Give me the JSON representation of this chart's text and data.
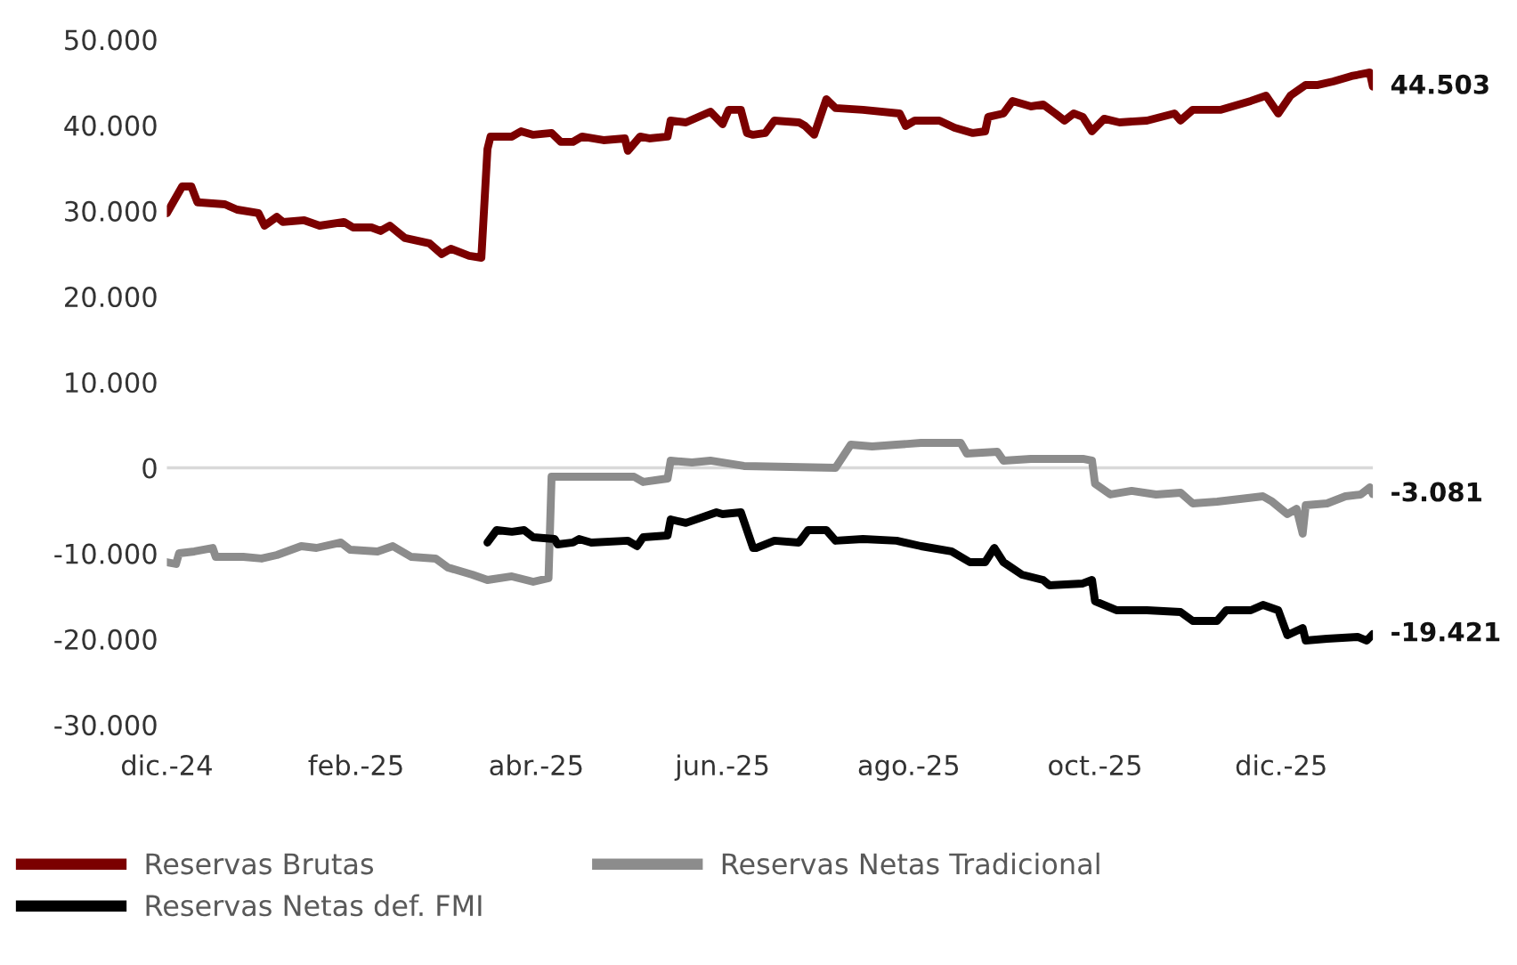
{
  "chart_data": {
    "type": "line",
    "xlim": [
      "2024-12-01",
      "2025-12-31"
    ],
    "xticks": [
      {
        "value": "2024-12-01",
        "label": "dic.-24"
      },
      {
        "value": "2025-02-01",
        "label": "feb.-25"
      },
      {
        "value": "2025-04-01",
        "label": "abr.-25"
      },
      {
        "value": "2025-06-01",
        "label": "jun.-25"
      },
      {
        "value": "2025-08-01",
        "label": "ago.-25"
      },
      {
        "value": "2025-10-01",
        "label": "oct.-25"
      },
      {
        "value": "2025-12-01",
        "label": "dic.-25"
      }
    ],
    "ylim": [
      -30000,
      50000
    ],
    "yticks": [
      {
        "value": 50000,
        "label": "50.000"
      },
      {
        "value": 40000,
        "label": "40.000"
      },
      {
        "value": 30000,
        "label": "30.000"
      },
      {
        "value": 20000,
        "label": "20.000"
      },
      {
        "value": 10000,
        "label": "10.000"
      },
      0,
      {
        "value": -10000,
        "label": "-10.000"
      },
      {
        "value": -20000,
        "label": "-20.000"
      },
      {
        "value": -30000,
        "label": "-30.000"
      }
    ],
    "grid": false,
    "legend": "bottom",
    "marker": "none",
    "line_style": "solid",
    "ref_lines": [
      {
        "axis": "y",
        "value": 0,
        "color": "#d9d9d9"
      }
    ],
    "annotations": [
      {
        "text": "44.503",
        "x": "2025-12-31",
        "y": 44503
      },
      {
        "text": "-3.081",
        "x": "2025-12-31",
        "y": -3081
      },
      {
        "text": "-19.421",
        "x": "2025-12-31",
        "y": -19421
      }
    ],
    "series": [
      {
        "name": "Reservas Brutas",
        "color": "#7b0000",
        "x": [
          "2024-12-01",
          "2024-12-06",
          "2024-12-09",
          "2024-12-11",
          "2024-12-20",
          "2024-12-24",
          "2024-12-31",
          "2025-01-02",
          "2025-01-06",
          "2025-01-08",
          "2025-01-15",
          "2025-01-20",
          "2025-01-28",
          "2025-01-31",
          "2025-02-06",
          "2025-02-09",
          "2025-02-12",
          "2025-02-17",
          "2025-02-25",
          "2025-03-01",
          "2025-03-04",
          "2025-03-10",
          "2025-03-14",
          "2025-03-16",
          "2025-03-17",
          "2025-03-24",
          "2025-03-27",
          "2025-03-31",
          "2025-04-06",
          "2025-04-09",
          "2025-04-13",
          "2025-04-16",
          "2025-04-23",
          "2025-04-30",
          "2025-05-01",
          "2025-05-05",
          "2025-05-08",
          "2025-05-14",
          "2025-05-15",
          "2025-05-20",
          "2025-05-28",
          "2025-06-01",
          "2025-06-03",
          "2025-06-07",
          "2025-06-09",
          "2025-06-11",
          "2025-06-15",
          "2025-06-18",
          "2025-06-26",
          "2025-06-28",
          "2025-07-01",
          "2025-07-05",
          "2025-07-08",
          "2025-07-17",
          "2025-07-29",
          "2025-07-31",
          "2025-08-03",
          "2025-08-11",
          "2025-08-16",
          "2025-08-22",
          "2025-08-26",
          "2025-08-27",
          "2025-09-01",
          "2025-09-04",
          "2025-09-10",
          "2025-09-14",
          "2025-09-18",
          "2025-09-21",
          "2025-09-24",
          "2025-09-27",
          "2025-09-30",
          "2025-10-04",
          "2025-10-09",
          "2025-10-18",
          "2025-10-27",
          "2025-10-29",
          "2025-11-02",
          "2025-11-11",
          "2025-11-21",
          "2025-11-26",
          "2025-11-30",
          "2025-12-04",
          "2025-12-09",
          "2025-12-13",
          "2025-12-18",
          "2025-12-24",
          "2025-12-30",
          "2025-12-31"
        ],
        "values": [
          29730,
          32850,
          32850,
          31000,
          30770,
          30140,
          29730,
          28270,
          29300,
          28700,
          28900,
          28270,
          28700,
          28060,
          28060,
          27650,
          28270,
          26820,
          26200,
          24950,
          25570,
          24740,
          24530,
          37210,
          38670,
          38670,
          39290,
          38880,
          39090,
          38050,
          38050,
          38670,
          38250,
          38460,
          37010,
          38670,
          38460,
          38670,
          40540,
          40330,
          41580,
          40120,
          41790,
          41790,
          39090,
          38880,
          39090,
          40540,
          40330,
          39920,
          38880,
          43040,
          42000,
          41790,
          41370,
          39920,
          40540,
          40540,
          39710,
          39090,
          39290,
          40960,
          41370,
          42830,
          42200,
          42410,
          41370,
          40540,
          41370,
          40960,
          39290,
          40750,
          40330,
          40540,
          41370,
          40540,
          41790,
          41790,
          42830,
          43450,
          41370,
          43450,
          44700,
          44700,
          45110,
          45740,
          46150,
          44503
        ]
      },
      {
        "name": "Reservas Netas Tradicional",
        "color": "#8c8c8c",
        "x": [
          "2024-12-01",
          "2024-12-04",
          "2024-12-05",
          "2024-12-10",
          "2024-12-16",
          "2024-12-17",
          "2024-12-26",
          "2025-01-01",
          "2025-01-06",
          "2025-01-14",
          "2025-01-19",
          "2025-01-27",
          "2025-01-30",
          "2025-02-08",
          "2025-02-13",
          "2025-02-19",
          "2025-02-27",
          "2025-03-03",
          "2025-03-11",
          "2025-03-16",
          "2025-03-24",
          "2025-03-31",
          "2025-04-05",
          "2025-04-06",
          "2025-05-03",
          "2025-05-06",
          "2025-05-14",
          "2025-05-15",
          "2025-05-22",
          "2025-05-28",
          "2025-06-08",
          "2025-07-08",
          "2025-07-13",
          "2025-07-20",
          "2025-07-28",
          "2025-08-05",
          "2025-08-18",
          "2025-08-20",
          "2025-08-30",
          "2025-09-01",
          "2025-09-10",
          "2025-09-27",
          "2025-09-30",
          "2025-10-01",
          "2025-10-06",
          "2025-10-13",
          "2025-10-21",
          "2025-10-29",
          "2025-11-02",
          "2025-11-10",
          "2025-11-25",
          "2025-11-28",
          "2025-12-03",
          "2025-12-06",
          "2025-12-08",
          "2025-12-09",
          "2025-12-16",
          "2025-12-22",
          "2025-12-27",
          "2025-12-30",
          "2025-12-31"
        ],
        "values": [
          -11020,
          -11230,
          -9980,
          -9770,
          -9360,
          -10400,
          -10400,
          -10600,
          -10190,
          -9150,
          -9360,
          -8730,
          -9560,
          -9770,
          -9150,
          -10400,
          -10600,
          -11640,
          -12470,
          -13100,
          -12680,
          -13310,
          -12890,
          -1040,
          -1040,
          -1660,
          -1250,
          830,
          620,
          830,
          210,
          0,
          2700,
          2490,
          2700,
          2910,
          2910,
          1660,
          1870,
          830,
          1040,
          1040,
          830,
          -1870,
          -3120,
          -2700,
          -3120,
          -2910,
          -4160,
          -3950,
          -3330,
          -3950,
          -5410,
          -4780,
          -7690,
          -4370,
          -4160,
          -3330,
          -3120,
          -2290,
          -3081
        ]
      },
      {
        "name": "Reservas Netas def. FMI",
        "color": "#000000",
        "x": [
          "2025-03-16",
          "2025-03-19",
          "2025-03-24",
          "2025-03-28",
          "2025-03-31",
          "2025-04-07",
          "2025-04-08",
          "2025-04-13",
          "2025-04-15",
          "2025-04-19",
          "2025-05-01",
          "2025-05-04",
          "2025-05-06",
          "2025-05-14",
          "2025-05-15",
          "2025-05-20",
          "2025-05-30",
          "2025-06-01",
          "2025-06-07",
          "2025-06-11",
          "2025-06-12",
          "2025-06-18",
          "2025-06-26",
          "2025-06-29",
          "2025-07-05",
          "2025-07-08",
          "2025-07-17",
          "2025-07-28",
          "2025-08-05",
          "2025-08-15",
          "2025-08-21",
          "2025-08-26",
          "2025-08-29",
          "2025-09-01",
          "2025-09-07",
          "2025-09-14",
          "2025-09-16",
          "2025-09-27",
          "2025-09-30",
          "2025-10-01",
          "2025-10-08",
          "2025-10-18",
          "2025-10-29",
          "2025-11-02",
          "2025-11-10",
          "2025-11-13",
          "2025-11-21",
          "2025-11-25",
          "2025-11-30",
          "2025-12-03",
          "2025-12-08",
          "2025-12-09",
          "2025-12-16",
          "2025-12-26",
          "2025-12-29",
          "2025-12-31"
        ],
        "values": [
          -8730,
          -7280,
          -7480,
          -7280,
          -8110,
          -8320,
          -8940,
          -8730,
          -8320,
          -8730,
          -8520,
          -9150,
          -8110,
          -7900,
          -6030,
          -6440,
          -5200,
          -5410,
          -5200,
          -9360,
          -9360,
          -8520,
          -8730,
          -7280,
          -7280,
          -8520,
          -8320,
          -8520,
          -9150,
          -9770,
          -11020,
          -11020,
          -9360,
          -11020,
          -12470,
          -13100,
          -13720,
          -13510,
          -13100,
          -15590,
          -16630,
          -16630,
          -16840,
          -17880,
          -17880,
          -16630,
          -16630,
          -16010,
          -16630,
          -19540,
          -18710,
          -20170,
          -19960,
          -19750,
          -20170,
          -19421
        ]
      }
    ]
  }
}
